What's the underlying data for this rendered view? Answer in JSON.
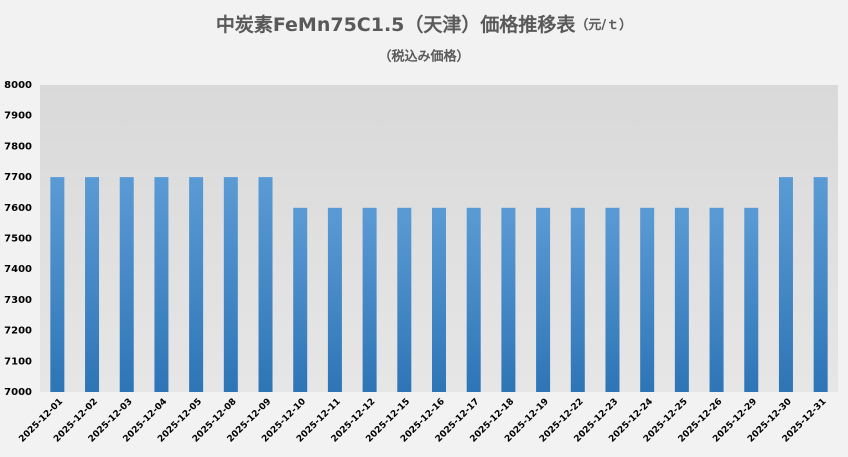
{
  "chart_data": {
    "type": "bar",
    "title": "中炭素FeMn75C1.5（天津）価格推移表",
    "title_unit": "（元/ｔ）",
    "subtitle": "（税込み価格）",
    "categories": [
      "2025-12-01",
      "2025-12-02",
      "2025-12-03",
      "2025-12-04",
      "2025-12-05",
      "2025-12-08",
      "2025-12-09",
      "2025-12-10",
      "2025-12-11",
      "2025-12-12",
      "2025-12-15",
      "2025-12-16",
      "2025-12-17",
      "2025-12-18",
      "2025-12-19",
      "2025-12-22",
      "2025-12-23",
      "2025-12-24",
      "2025-12-25",
      "2025-12-26",
      "2025-12-29",
      "2025-12-30",
      "2025-12-31"
    ],
    "values": [
      7700,
      7700,
      7700,
      7700,
      7700,
      7700,
      7700,
      7600,
      7600,
      7600,
      7600,
      7600,
      7600,
      7600,
      7600,
      7600,
      7600,
      7600,
      7600,
      7600,
      7600,
      7700,
      7700
    ],
    "color": "#5b9bd5",
    "ylim": [
      7000,
      8000
    ],
    "yticks": [
      7000,
      7100,
      7200,
      7300,
      7400,
      7500,
      7600,
      7700,
      7800,
      7900,
      8000
    ],
    "grid": false
  }
}
